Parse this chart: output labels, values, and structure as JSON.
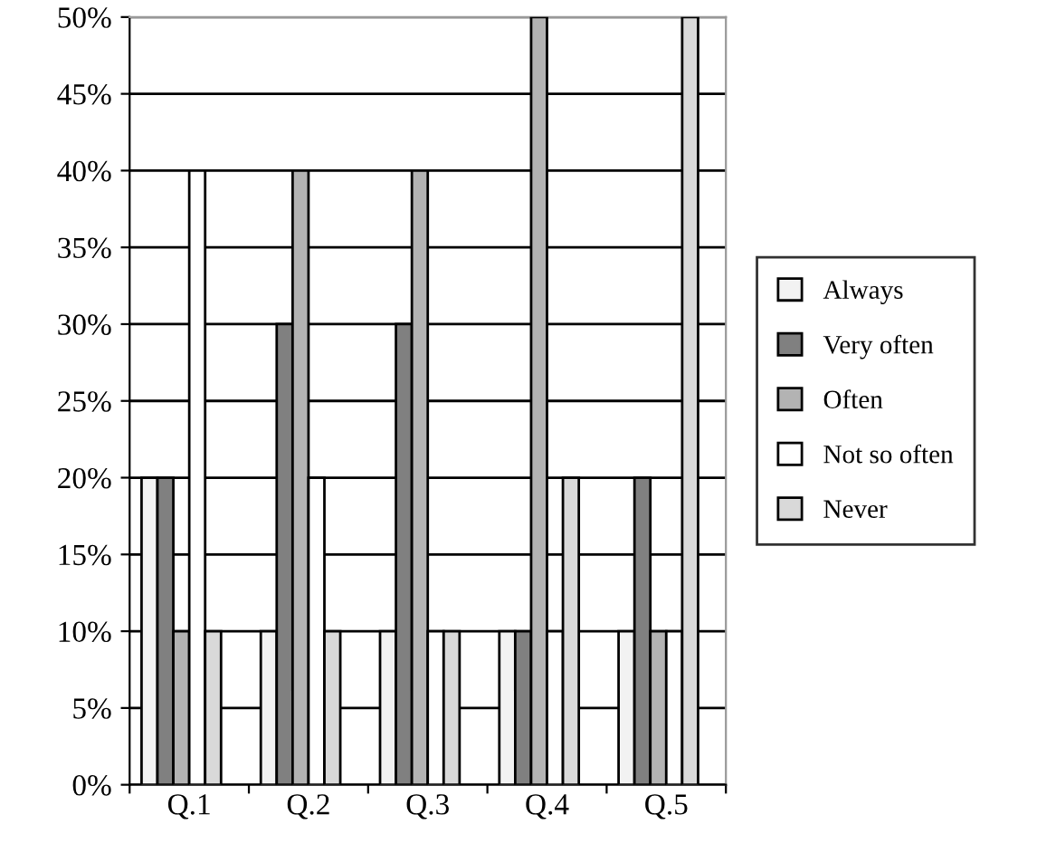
{
  "chart_data": {
    "type": "bar",
    "categories": [
      "Q.1",
      "Q.2",
      "Q.3",
      "Q.4",
      "Q.5"
    ],
    "series": [
      {
        "name": "Always",
        "color": "#f2f2f2",
        "values": [
          20,
          10,
          10,
          10,
          10
        ]
      },
      {
        "name": "Very often",
        "color": "#808080",
        "values": [
          20,
          30,
          30,
          10,
          20
        ]
      },
      {
        "name": "Often",
        "color": "#b3b3b3",
        "values": [
          10,
          40,
          40,
          50,
          10
        ]
      },
      {
        "name": "Not so often",
        "color": "#ffffff",
        "values": [
          40,
          20,
          10,
          10,
          10
        ]
      },
      {
        "name": "Never",
        "color": "#d9d9d9",
        "values": [
          10,
          10,
          10,
          20,
          50
        ]
      }
    ],
    "ylim": [
      0,
      50
    ],
    "yticks": [
      {
        "value": 0,
        "label": "0%"
      },
      {
        "value": 5,
        "label": "5%"
      },
      {
        "value": 10,
        "label": "10%"
      },
      {
        "value": 15,
        "label": "15%"
      },
      {
        "value": 20,
        "label": "20%"
      },
      {
        "value": 25,
        "label": "25%"
      },
      {
        "value": 30,
        "label": "30%"
      },
      {
        "value": 35,
        "label": "35%"
      },
      {
        "value": 40,
        "label": "40%"
      },
      {
        "value": 45,
        "label": "45%"
      },
      {
        "value": 50,
        "label": "50%"
      }
    ],
    "grid": "y",
    "legend": "right"
  }
}
